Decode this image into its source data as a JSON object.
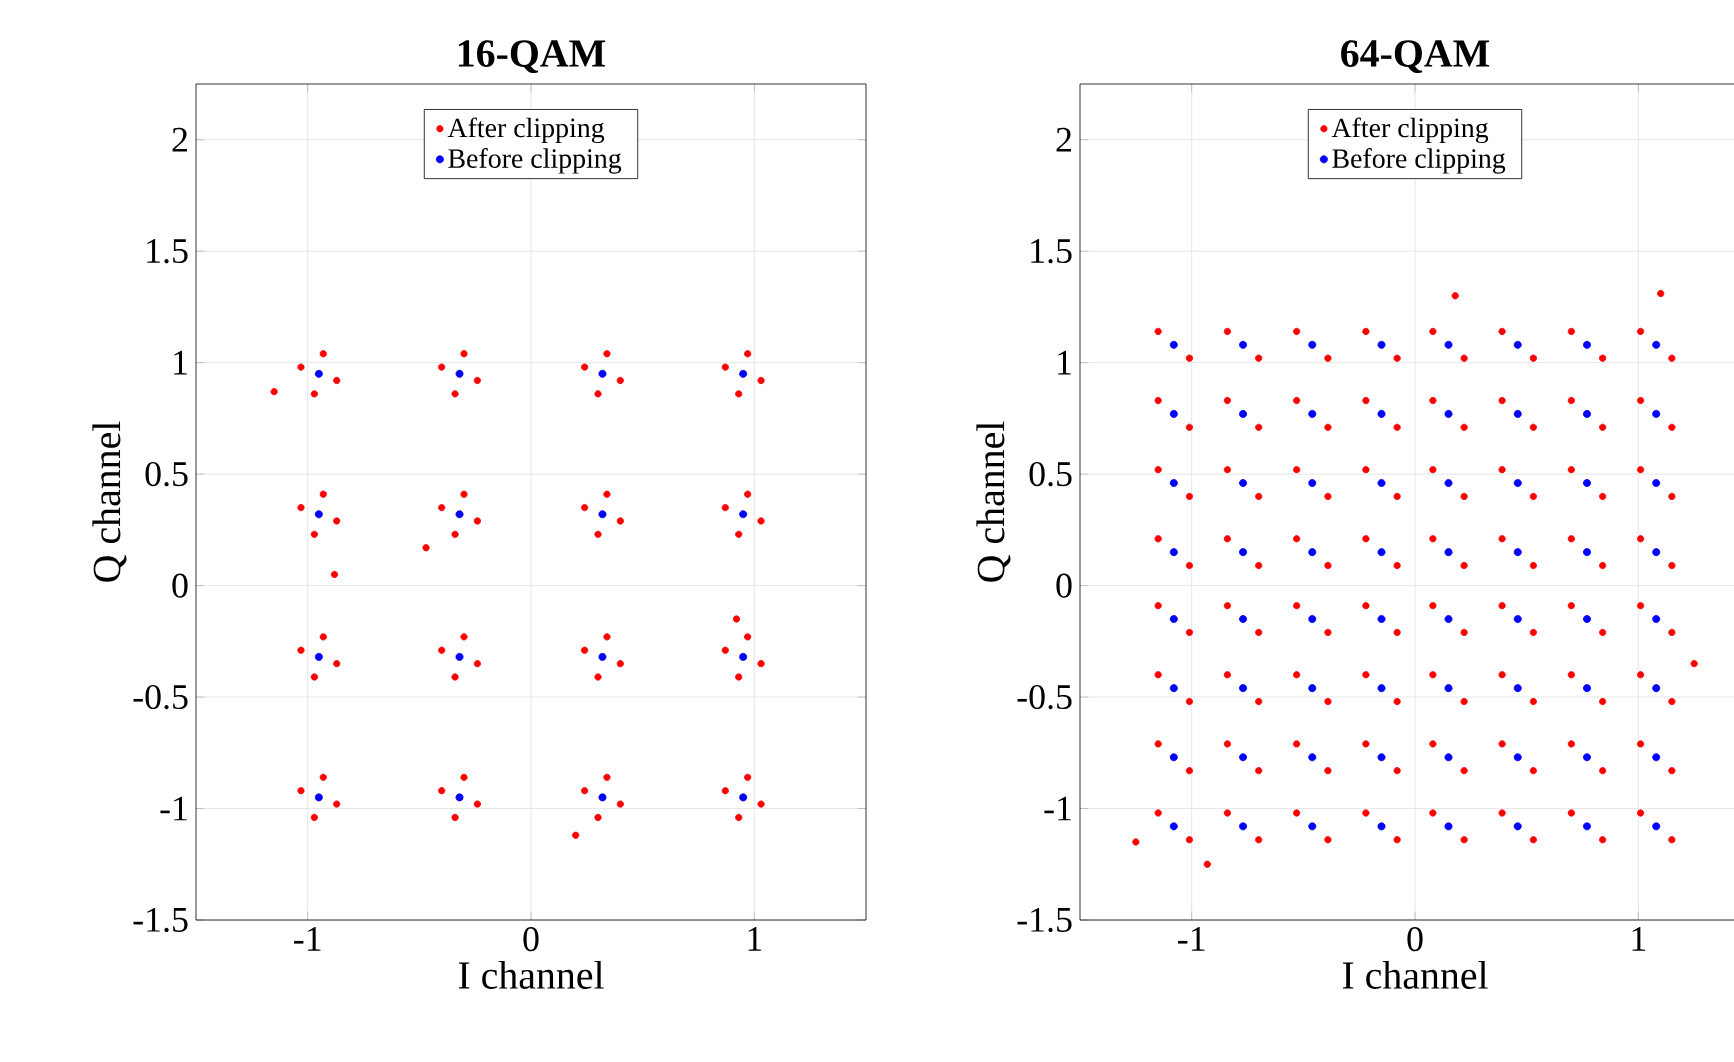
{
  "chart_data": [
    {
      "type": "scatter",
      "title": "16-QAM",
      "xlabel": "I channel",
      "ylabel": "Q channel",
      "xlim": [
        -1.5,
        1.5
      ],
      "ylim": [
        -1.5,
        2.25
      ],
      "xticks": [
        -1,
        0,
        1
      ],
      "yticks": [
        -1.5,
        -1,
        -0.5,
        0,
        0.5,
        1,
        1.5,
        2
      ],
      "grid": true,
      "legend": "top",
      "series": [
        {
          "name": "After clipping",
          "color": "#ff0000",
          "x": [
            -1.03,
            -0.87,
            -0.93,
            -0.97,
            -0.4,
            -0.24,
            -0.3,
            -0.34,
            0.24,
            0.4,
            0.34,
            0.3,
            0.87,
            1.03,
            0.97,
            0.93,
            -1.03,
            -0.87,
            -0.93,
            -0.97,
            -0.4,
            -0.24,
            -0.3,
            -0.34,
            0.24,
            0.4,
            0.34,
            0.3,
            0.87,
            1.03,
            0.97,
            0.93,
            -1.03,
            -0.87,
            -0.93,
            -0.97,
            -0.4,
            -0.24,
            -0.3,
            -0.34,
            0.24,
            0.4,
            0.34,
            0.3,
            0.87,
            1.03,
            0.97,
            0.93,
            -1.03,
            -0.87,
            -0.93,
            -0.97,
            -0.4,
            -0.24,
            -0.3,
            -0.34,
            0.24,
            0.4,
            0.34,
            0.3,
            0.87,
            1.03,
            0.97,
            0.93,
            -1.15,
            -0.88,
            0.2,
            0.92,
            -0.47
          ],
          "values": [
            0.98,
            0.92,
            1.04,
            0.86,
            0.98,
            0.92,
            1.04,
            0.86,
            0.98,
            0.92,
            1.04,
            0.86,
            0.98,
            0.92,
            1.04,
            0.86,
            0.35,
            0.29,
            0.41,
            0.23,
            0.35,
            0.29,
            0.41,
            0.23,
            0.35,
            0.29,
            0.41,
            0.23,
            0.35,
            0.29,
            0.41,
            0.23,
            -0.29,
            -0.35,
            -0.23,
            -0.41,
            -0.29,
            -0.35,
            -0.23,
            -0.41,
            -0.29,
            -0.35,
            -0.23,
            -0.41,
            -0.29,
            -0.35,
            -0.23,
            -0.41,
            -0.92,
            -0.98,
            -0.86,
            -1.04,
            -0.92,
            -0.98,
            -0.86,
            -1.04,
            -0.92,
            -0.98,
            -0.86,
            -1.04,
            -0.92,
            -0.98,
            -0.86,
            -1.04,
            0.87,
            0.05,
            -1.12,
            -0.15,
            0.17
          ]
        },
        {
          "name": "Before clipping",
          "color": "#0000ff",
          "x": [
            -0.95,
            -0.32,
            0.32,
            0.95,
            -0.95,
            -0.32,
            0.32,
            0.95,
            -0.95,
            -0.32,
            0.32,
            0.95,
            -0.95,
            -0.32,
            0.32,
            0.95
          ],
          "values": [
            0.95,
            0.95,
            0.95,
            0.95,
            0.32,
            0.32,
            0.32,
            0.32,
            -0.32,
            -0.32,
            -0.32,
            -0.32,
            -0.95,
            -0.95,
            -0.95,
            -0.95
          ]
        }
      ]
    },
    {
      "type": "scatter",
      "title": "64-QAM",
      "xlabel": "I channel",
      "ylabel": "Q channel",
      "xlim": [
        -1.5,
        1.5
      ],
      "ylim": [
        -1.5,
        2.25
      ],
      "xticks": [
        -1,
        0,
        1
      ],
      "yticks": [
        -1.5,
        -1,
        -0.5,
        0,
        0.5,
        1,
        1.5,
        2
      ],
      "grid": true,
      "legend": "top",
      "series": [
        {
          "name": "After clipping",
          "color": "#ff0000",
          "x": [
            -1.15,
            -1.01,
            -0.84,
            -0.7,
            -0.53,
            -0.39,
            -0.22,
            -0.08,
            0.08,
            0.22,
            0.39,
            0.53,
            0.7,
            0.84,
            1.01,
            1.15,
            -1.15,
            -1.01,
            -0.84,
            -0.7,
            -0.53,
            -0.39,
            -0.22,
            -0.08,
            0.08,
            0.22,
            0.39,
            0.53,
            0.7,
            0.84,
            1.01,
            1.15,
            -1.15,
            -1.01,
            -0.84,
            -0.7,
            -0.53,
            -0.39,
            -0.22,
            -0.08,
            0.08,
            0.22,
            0.39,
            0.53,
            0.7,
            0.84,
            1.01,
            1.15,
            -1.15,
            -1.01,
            -0.84,
            -0.7,
            -0.53,
            -0.39,
            -0.22,
            -0.08,
            0.08,
            0.22,
            0.39,
            0.53,
            0.7,
            0.84,
            1.01,
            1.15,
            -1.15,
            -1.01,
            -0.84,
            -0.7,
            -0.53,
            -0.39,
            -0.22,
            -0.08,
            0.08,
            0.22,
            0.39,
            0.53,
            0.7,
            0.84,
            1.01,
            1.15,
            -1.15,
            -1.01,
            -0.84,
            -0.7,
            -0.53,
            -0.39,
            -0.22,
            -0.08,
            0.08,
            0.22,
            0.39,
            0.53,
            0.7,
            0.84,
            1.01,
            1.15,
            -1.15,
            -1.01,
            -0.84,
            -0.7,
            -0.53,
            -0.39,
            -0.22,
            -0.08,
            0.08,
            0.22,
            0.39,
            0.53,
            0.7,
            0.84,
            1.01,
            1.15,
            -1.15,
            -1.01,
            -0.84,
            -0.7,
            -0.53,
            -0.39,
            -0.22,
            -0.08,
            0.08,
            0.22,
            0.39,
            0.53,
            0.7,
            0.84,
            1.01,
            1.15,
            1.1,
            0.18,
            -0.93,
            1.25,
            -1.25
          ],
          "values": [
            1.14,
            1.02,
            1.14,
            1.02,
            1.14,
            1.02,
            1.14,
            1.02,
            1.14,
            1.02,
            1.14,
            1.02,
            1.14,
            1.02,
            1.14,
            1.02,
            0.83,
            0.71,
            0.83,
            0.71,
            0.83,
            0.71,
            0.83,
            0.71,
            0.83,
            0.71,
            0.83,
            0.71,
            0.83,
            0.71,
            0.83,
            0.71,
            0.52,
            0.4,
            0.52,
            0.4,
            0.52,
            0.4,
            0.52,
            0.4,
            0.52,
            0.4,
            0.52,
            0.4,
            0.52,
            0.4,
            0.52,
            0.4,
            0.21,
            0.09,
            0.21,
            0.09,
            0.21,
            0.09,
            0.21,
            0.09,
            0.21,
            0.09,
            0.21,
            0.09,
            0.21,
            0.09,
            0.21,
            0.09,
            -0.09,
            -0.21,
            -0.09,
            -0.21,
            -0.09,
            -0.21,
            -0.09,
            -0.21,
            -0.09,
            -0.21,
            -0.09,
            -0.21,
            -0.09,
            -0.21,
            -0.09,
            -0.21,
            -0.4,
            -0.52,
            -0.4,
            -0.52,
            -0.4,
            -0.52,
            -0.4,
            -0.52,
            -0.4,
            -0.52,
            -0.4,
            -0.52,
            -0.4,
            -0.52,
            -0.4,
            -0.52,
            -0.71,
            -0.83,
            -0.71,
            -0.83,
            -0.71,
            -0.83,
            -0.71,
            -0.83,
            -0.71,
            -0.83,
            -0.71,
            -0.83,
            -0.71,
            -0.83,
            -0.71,
            -0.83,
            -1.02,
            -1.14,
            -1.02,
            -1.14,
            -1.02,
            -1.14,
            -1.02,
            -1.14,
            -1.02,
            -1.14,
            -1.02,
            -1.14,
            -1.02,
            -1.14,
            -1.02,
            -1.14,
            1.31,
            1.3,
            -1.25,
            -0.35,
            -1.15
          ]
        },
        {
          "name": "Before clipping",
          "color": "#0000ff",
          "x": [
            -1.08,
            -0.77,
            -0.46,
            -0.15,
            0.15,
            0.46,
            0.77,
            1.08,
            -1.08,
            -0.77,
            -0.46,
            -0.15,
            0.15,
            0.46,
            0.77,
            1.08,
            -1.08,
            -0.77,
            -0.46,
            -0.15,
            0.15,
            0.46,
            0.77,
            1.08,
            -1.08,
            -0.77,
            -0.46,
            -0.15,
            0.15,
            0.46,
            0.77,
            1.08,
            -1.08,
            -0.77,
            -0.46,
            -0.15,
            0.15,
            0.46,
            0.77,
            1.08,
            -1.08,
            -0.77,
            -0.46,
            -0.15,
            0.15,
            0.46,
            0.77,
            1.08,
            -1.08,
            -0.77,
            -0.46,
            -0.15,
            0.15,
            0.46,
            0.77,
            1.08,
            -1.08,
            -0.77,
            -0.46,
            -0.15,
            0.15,
            0.46,
            0.77,
            1.08
          ],
          "values": [
            1.08,
            1.08,
            1.08,
            1.08,
            1.08,
            1.08,
            1.08,
            1.08,
            0.77,
            0.77,
            0.77,
            0.77,
            0.77,
            0.77,
            0.77,
            0.77,
            0.46,
            0.46,
            0.46,
            0.46,
            0.46,
            0.46,
            0.46,
            0.46,
            0.15,
            0.15,
            0.15,
            0.15,
            0.15,
            0.15,
            0.15,
            0.15,
            -0.15,
            -0.15,
            -0.15,
            -0.15,
            -0.15,
            -0.15,
            -0.15,
            -0.15,
            -0.46,
            -0.46,
            -0.46,
            -0.46,
            -0.46,
            -0.46,
            -0.46,
            -0.46,
            -0.77,
            -0.77,
            -0.77,
            -0.77,
            -0.77,
            -0.77,
            -0.77,
            -0.77,
            -1.08,
            -1.08,
            -1.08,
            -1.08,
            -1.08,
            -1.08,
            -1.08,
            -1.08
          ]
        }
      ]
    }
  ]
}
